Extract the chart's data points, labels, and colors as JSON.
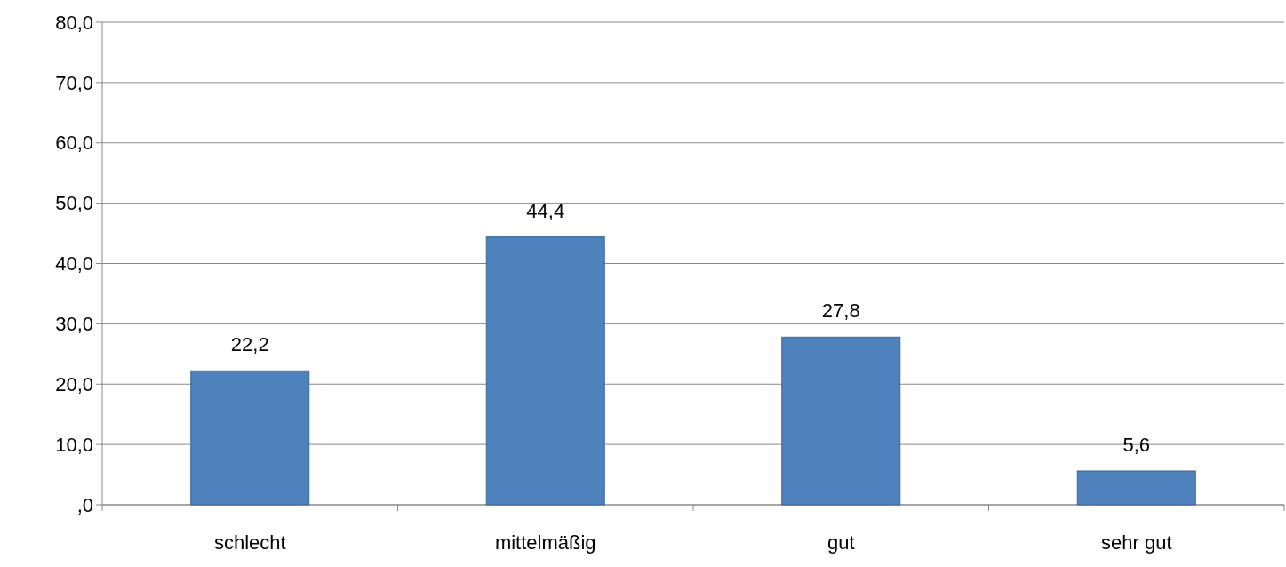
{
  "chart_data": {
    "type": "bar",
    "categories": [
      "schlecht",
      "mittelmäßig",
      "gut",
      "sehr gut"
    ],
    "values": [
      22.2,
      44.4,
      27.8,
      5.6
    ],
    "value_labels": [
      "22,2",
      "44,4",
      "27,8",
      "5,6"
    ],
    "color": "#4f81bd",
    "ylim": [
      0,
      80
    ],
    "yticks": [
      {
        "value": 0,
        "label": ",0"
      },
      {
        "value": 10,
        "label": "10,0"
      },
      {
        "value": 20,
        "label": "20,0"
      },
      {
        "value": 30,
        "label": "30,0"
      },
      {
        "value": 40,
        "label": "40,0"
      },
      {
        "value": 50,
        "label": "50,0"
      },
      {
        "value": 60,
        "label": "60,0"
      },
      {
        "value": 70,
        "label": "70,0"
      },
      {
        "value": 80,
        "label": "80,0"
      }
    ],
    "grid": "y"
  }
}
